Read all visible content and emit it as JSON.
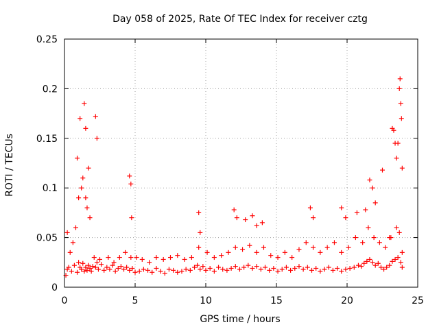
{
  "chart_data": {
    "type": "scatter",
    "title": "Day 058 of 2025, Rate Of TEC Index for receiver cztg",
    "xlabel": "GPS time / hours",
    "ylabel": "ROTI / TECUs",
    "xlim": [
      0,
      25
    ],
    "ylim": [
      0,
      0.25
    ],
    "x_ticks": [
      0,
      5,
      10,
      15,
      20,
      25
    ],
    "y_ticks": [
      0,
      0.05,
      0.1,
      0.15,
      0.2,
      0.25
    ],
    "x_tick_labels": [
      "0",
      "5",
      "10",
      "15",
      "20",
      "25"
    ],
    "y_tick_labels": [
      "0",
      "0.05",
      "0.1",
      "0.15",
      "0.2",
      "0.25"
    ],
    "grid": true,
    "marker": "+",
    "series": [
      {
        "name": "ROTI",
        "color": "#ff0000",
        "x": [
          0.1,
          0.2,
          0.3,
          0.5,
          0.7,
          0.9,
          1.0,
          1.1,
          1.2,
          1.3,
          1.4,
          1.5,
          1.6,
          1.7,
          1.8,
          1.9,
          2.0,
          2.2,
          2.4,
          2.6,
          2.8,
          3.0,
          3.2,
          3.4,
          3.6,
          3.8,
          4.0,
          4.2,
          4.4,
          4.6,
          4.8,
          5.0,
          5.3,
          5.6,
          5.9,
          6.2,
          6.5,
          6.8,
          7.1,
          7.4,
          7.7,
          8.0,
          8.3,
          8.6,
          8.9,
          9.2,
          9.4,
          9.6,
          9.8,
          10.0,
          10.3,
          10.6,
          10.9,
          11.2,
          11.5,
          11.8,
          12.1,
          12.4,
          12.7,
          13.0,
          13.3,
          13.6,
          13.9,
          14.2,
          14.5,
          14.8,
          15.1,
          15.4,
          15.7,
          16.0,
          16.3,
          16.6,
          16.9,
          17.2,
          17.5,
          17.8,
          18.1,
          18.4,
          18.7,
          19.0,
          19.3,
          19.6,
          19.9,
          20.2,
          20.5,
          20.8,
          21.0,
          21.2,
          21.4,
          21.6,
          21.8,
          22.0,
          22.2,
          22.4,
          22.6,
          22.8,
          23.0,
          23.2,
          23.4,
          23.6,
          23.8,
          23.9,
          0.4,
          0.6,
          0.8,
          1.0,
          1.2,
          1.3,
          1.5,
          1.6,
          1.8,
          2.1,
          2.3,
          2.5,
          3.1,
          3.5,
          3.9,
          4.3,
          4.7,
          5.1,
          5.5,
          6.0,
          6.5,
          7.0,
          7.5,
          8.0,
          8.5,
          9.0,
          9.5,
          10.1,
          10.6,
          11.1,
          11.6,
          12.1,
          12.6,
          13.1,
          13.6,
          14.1,
          14.6,
          15.1,
          15.6,
          16.1,
          16.6,
          17.1,
          17.6,
          18.1,
          18.6,
          19.1,
          19.6,
          20.1,
          20.6,
          21.1,
          21.5,
          21.9,
          22.3,
          22.7,
          23.1,
          23.5,
          23.7,
          23.9,
          0.2,
          0.9,
          1.1,
          1.4,
          1.5,
          1.7,
          2.2,
          2.3,
          4.6,
          4.7,
          4.75,
          9.5,
          9.6,
          12.0,
          12.2,
          12.8,
          13.3,
          13.6,
          14.0,
          17.4,
          17.6,
          19.6,
          19.9,
          20.7,
          21.3,
          21.6,
          21.8,
          22.0,
          22.5,
          23.0,
          23.2,
          23.3,
          23.4,
          23.5,
          23.6,
          23.7,
          23.75,
          23.8,
          23.85,
          23.9
        ],
        "y": [
          0.012,
          0.018,
          0.02,
          0.016,
          0.022,
          0.015,
          0.025,
          0.02,
          0.018,
          0.024,
          0.016,
          0.02,
          0.017,
          0.022,
          0.019,
          0.016,
          0.021,
          0.02,
          0.018,
          0.023,
          0.017,
          0.02,
          0.018,
          0.022,
          0.016,
          0.019,
          0.021,
          0.018,
          0.02,
          0.017,
          0.019,
          0.015,
          0.016,
          0.018,
          0.017,
          0.015,
          0.019,
          0.016,
          0.014,
          0.018,
          0.017,
          0.015,
          0.016,
          0.018,
          0.017,
          0.02,
          0.022,
          0.018,
          0.021,
          0.017,
          0.019,
          0.016,
          0.02,
          0.018,
          0.017,
          0.019,
          0.021,
          0.018,
          0.02,
          0.022,
          0.019,
          0.021,
          0.018,
          0.02,
          0.017,
          0.019,
          0.016,
          0.018,
          0.02,
          0.017,
          0.019,
          0.021,
          0.018,
          0.02,
          0.017,
          0.019,
          0.016,
          0.018,
          0.02,
          0.017,
          0.019,
          0.016,
          0.018,
          0.019,
          0.02,
          0.022,
          0.021,
          0.024,
          0.026,
          0.028,
          0.025,
          0.022,
          0.024,
          0.02,
          0.018,
          0.02,
          0.022,
          0.026,
          0.028,
          0.03,
          0.025,
          0.02,
          0.035,
          0.045,
          0.06,
          0.09,
          0.1,
          0.11,
          0.09,
          0.08,
          0.07,
          0.03,
          0.025,
          0.028,
          0.03,
          0.025,
          0.03,
          0.035,
          0.03,
          0.03,
          0.028,
          0.025,
          0.03,
          0.028,
          0.03,
          0.032,
          0.028,
          0.03,
          0.04,
          0.035,
          0.03,
          0.032,
          0.035,
          0.04,
          0.038,
          0.042,
          0.035,
          0.04,
          0.032,
          0.03,
          0.035,
          0.03,
          0.038,
          0.045,
          0.04,
          0.035,
          0.04,
          0.045,
          0.035,
          0.04,
          0.05,
          0.045,
          0.06,
          0.05,
          0.045,
          0.04,
          0.05,
          0.06,
          0.055,
          0.035,
          0.055,
          0.13,
          0.17,
          0.185,
          0.16,
          0.12,
          0.172,
          0.15,
          0.112,
          0.104,
          0.07,
          0.075,
          0.055,
          0.078,
          0.07,
          0.068,
          0.072,
          0.062,
          0.065,
          0.08,
          0.07,
          0.08,
          0.07,
          0.075,
          0.078,
          0.108,
          0.1,
          0.085,
          0.118,
          0.05,
          0.16,
          0.158,
          0.145,
          0.13,
          0.145,
          0.2,
          0.21,
          0.185,
          0.17,
          0.12
        ]
      }
    ]
  }
}
